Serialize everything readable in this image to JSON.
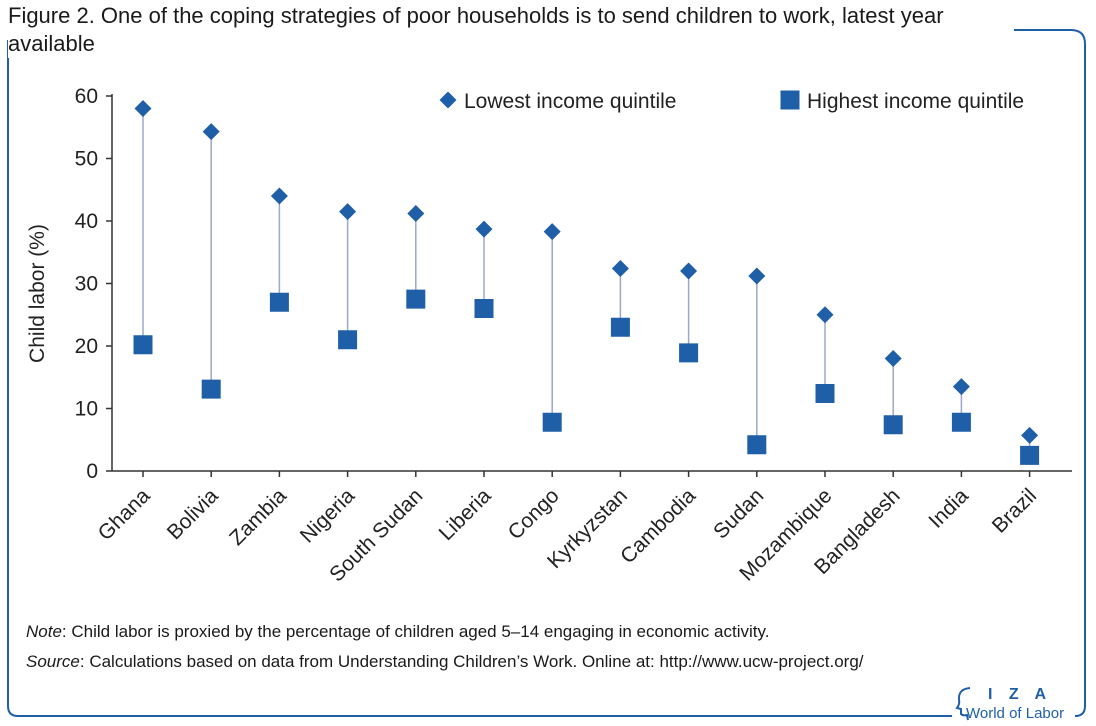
{
  "figure": {
    "title": "Figure 2. One of the coping strategies of poor households is to send children to work, latest year available",
    "note_label": "Note",
    "note_text": ": Child labor is proxied by the percentage of children aged 5–14 engaging in economic activity.",
    "source_label": "Source",
    "source_text": ": Calculations based on data from Understanding Children’s Work. Online at: http://www.ucw-project.org/",
    "logo_letters": "I Z A",
    "logo_subtitle": "World of Labor"
  },
  "colors": {
    "accent": "#1f5fa8",
    "connector": "#9aa8cc",
    "axis": "#333333",
    "frame": "#1f5fa8"
  },
  "chart_data": {
    "type": "scatter",
    "title": "",
    "xlabel": "",
    "ylabel": "Child labor (%)",
    "ylim": [
      0,
      60
    ],
    "yticks": [
      0,
      10,
      20,
      30,
      40,
      50,
      60
    ],
    "grid": false,
    "legend_position": "top-right",
    "categories": [
      "Ghana",
      "Bolivia",
      "Zambia",
      "Nigeria",
      "South Sudan",
      "Liberia",
      "Congo",
      "Kyrkyzstan",
      "Cambodia",
      "Sudan",
      "Mozambique",
      "Bangladesh",
      "India",
      "Brazil"
    ],
    "series": [
      {
        "name": "Lowest income quintile",
        "marker": "diamond",
        "values": [
          58,
          54.3,
          44,
          41.5,
          41.2,
          38.7,
          38.3,
          32.4,
          32,
          31.2,
          25,
          18,
          13.5,
          5.7
        ]
      },
      {
        "name": "Highest income quintile",
        "marker": "square",
        "values": [
          20.2,
          13.1,
          27,
          21,
          27.5,
          26,
          7.8,
          23,
          18.9,
          4.2,
          12.4,
          7.4,
          7.8,
          2.5
        ]
      }
    ]
  }
}
